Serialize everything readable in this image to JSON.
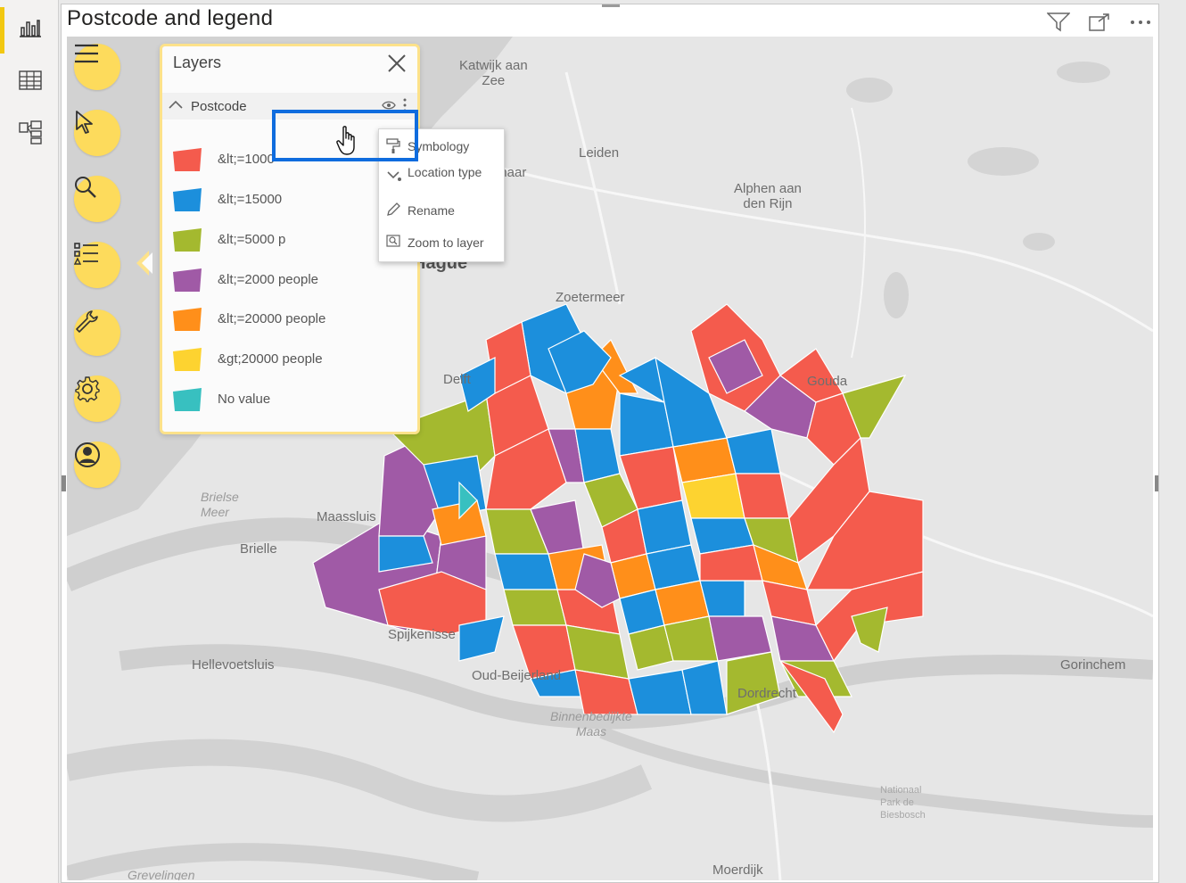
{
  "visual": {
    "title": "Postcode and legend"
  },
  "nav": {
    "items": [
      {
        "name": "report-view-icon"
      },
      {
        "name": "data-view-icon"
      },
      {
        "name": "model-view-icon"
      }
    ]
  },
  "header_icons": [
    "filter-icon",
    "focus-mode-icon",
    "more-options-icon"
  ],
  "tools": [
    "menu-icon",
    "select-cursor-icon",
    "search-icon",
    "layers-list-icon",
    "wrench-icon",
    "settings-gear-icon",
    "user-profile-icon"
  ],
  "layers_panel": {
    "title": "Layers",
    "layer_name": "Postcode",
    "legend": [
      {
        "label": "&lt;=1000",
        "color": "#f45b4d"
      },
      {
        "label": "&lt;=15000",
        "color": "#1c8fdc"
      },
      {
        "label": "&lt;=5000 p",
        "color": "#a4b92f"
      },
      {
        "label": "&lt;=2000 people",
        "color": "#a05aa6"
      },
      {
        "label": "&lt;=20000 people",
        "color": "#ff8f1a"
      },
      {
        "label": "&gt;20000 people",
        "color": "#fdd330"
      },
      {
        "label": "No value",
        "color": "#38c0c0"
      }
    ]
  },
  "context_menu": {
    "items": [
      {
        "label": "Symbology",
        "icon": "paint-roller-icon"
      },
      {
        "label": "Location type",
        "icon": "location-type-icon"
      },
      {
        "label": "Rename",
        "icon": "pencil-icon"
      },
      {
        "label": "Zoom to layer",
        "icon": "zoom-layer-icon"
      }
    ]
  },
  "map": {
    "places": [
      "Katwijk aan\nZee",
      "Leiden",
      "Wassenaar",
      "Alphen aan\nden Rijn",
      "Hague",
      "Zoetermeer",
      "Delft",
      "Gouda",
      "Maassluis",
      "Brielle",
      "Spijkenisse",
      "Hellevoetsluis",
      "Oud-Beijerland",
      "Dordrecht",
      "Gorinchem",
      "Moerdijk"
    ],
    "water_labels": [
      "Brielse\nMeer",
      "Binnenbedijkte\nMaas",
      "Grevelingen"
    ],
    "park_label": "Nationaal\nPark de\nBiesbosch"
  }
}
